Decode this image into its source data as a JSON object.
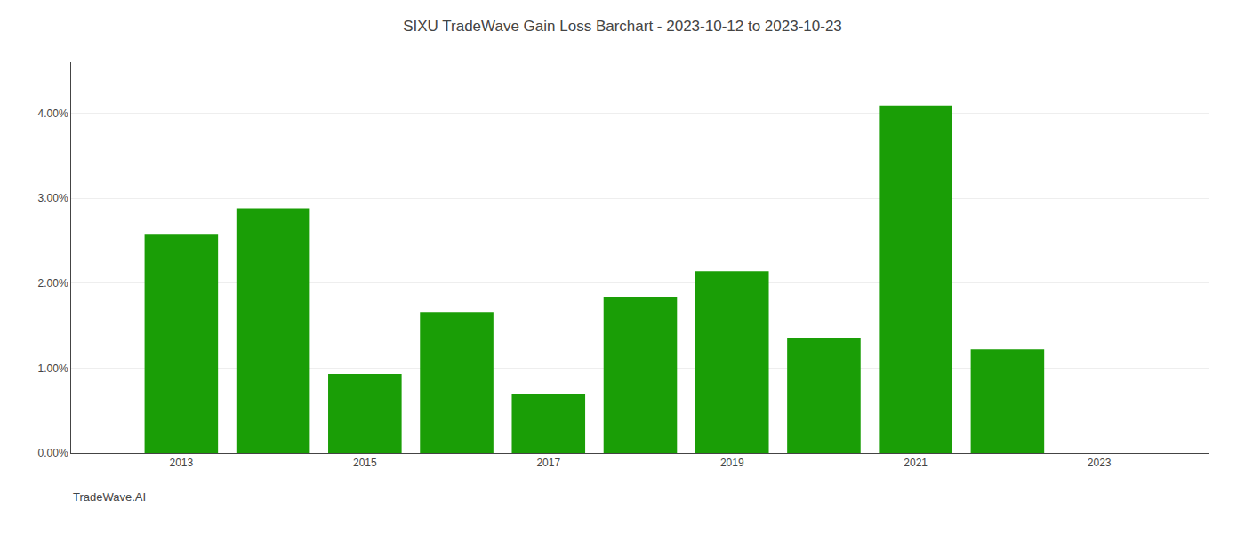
{
  "chart_data": {
    "type": "bar",
    "title": "SIXU TradeWave Gain Loss Barchart - 2023-10-12 to 2023-10-23",
    "annotations": [
      "TradeWave.AI"
    ],
    "x": [
      2013,
      2014,
      2015,
      2016,
      2017,
      2018,
      2019,
      2020,
      2021,
      2022
    ],
    "values": [
      0.0258,
      0.0288,
      0.0093,
      0.0166,
      0.007,
      0.0184,
      0.0214,
      0.0136,
      0.0409,
      0.0122
    ],
    "color": "#1a9e06",
    "xlim": [
      2011.8,
      2024.2
    ],
    "xticks": [
      2013,
      2015,
      2017,
      2019,
      2021,
      2023
    ],
    "ylim": [
      0,
      0.046
    ],
    "yticks": [
      {
        "value": 0.0,
        "label": "0.00%"
      },
      {
        "value": 0.01,
        "label": "1.00%"
      },
      {
        "value": 0.02,
        "label": "2.00%"
      },
      {
        "value": 0.03,
        "label": "3.00%"
      },
      {
        "value": 0.04,
        "label": "4.00%"
      }
    ],
    "grid": true
  }
}
